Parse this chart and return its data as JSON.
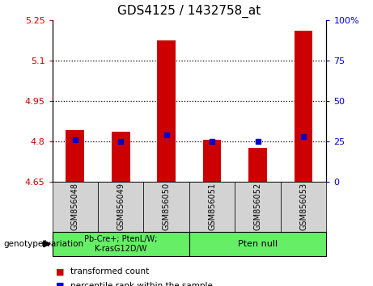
{
  "title": "GDS4125 / 1432758_at",
  "samples": [
    "GSM856048",
    "GSM856049",
    "GSM856050",
    "GSM856051",
    "GSM856052",
    "GSM856053"
  ],
  "bar_values": [
    4.84,
    4.835,
    5.175,
    4.805,
    4.775,
    5.21
  ],
  "percentile_values": [
    26,
    25,
    29,
    25,
    25,
    28
  ],
  "ylim_left": [
    4.65,
    5.25
  ],
  "ylim_right": [
    0,
    100
  ],
  "yticks_left": [
    4.65,
    4.8,
    4.95,
    5.1,
    5.25
  ],
  "yticks_right": [
    0,
    25,
    50,
    75,
    100
  ],
  "ytick_labels_left": [
    "4.65",
    "4.8",
    "4.95",
    "5.1",
    "5.25"
  ],
  "ytick_labels_right": [
    "0",
    "25",
    "50",
    "75",
    "100%"
  ],
  "hlines": [
    4.8,
    4.95,
    5.1
  ],
  "bar_color": "#cc0000",
  "dot_color": "#0000cc",
  "bar_bottom": 4.65,
  "group1_label": "Pb-Cre+; PtenL/W;\nK-rasG12D/W",
  "group2_label": "Pten null",
  "group_box_color": "#66ee66",
  "sample_box_color": "#d3d3d3",
  "genotype_label": "genotype/variation",
  "legend_label_1": "transformed count",
  "legend_label_2": "percentile rank within the sample",
  "left_axis_color": "#cc0000",
  "right_axis_color": "#0000cc",
  "title_fontsize": 11,
  "tick_fontsize": 8,
  "sample_fontsize": 7
}
